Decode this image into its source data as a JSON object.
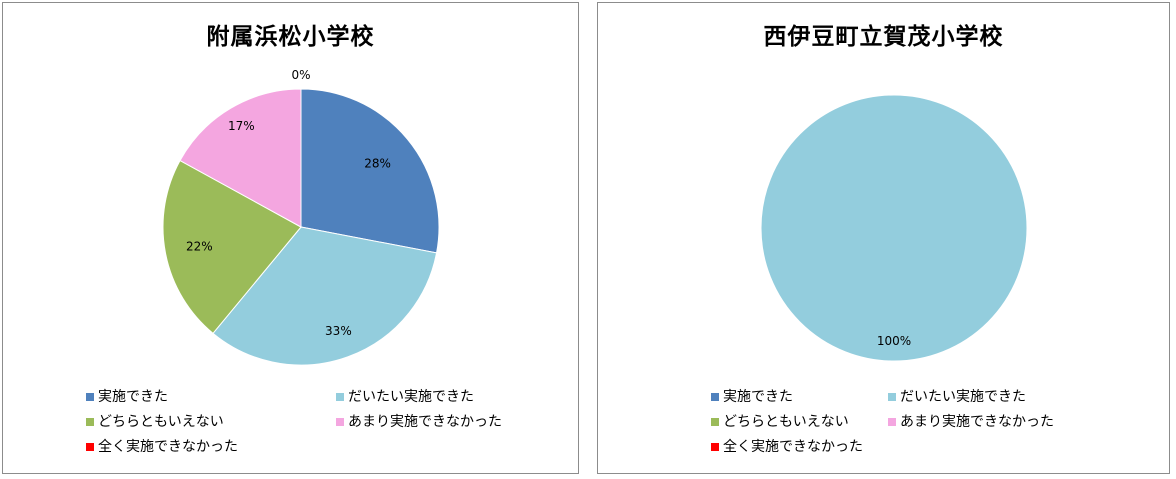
{
  "legend_labels": [
    "実施できた",
    "だいたい実施できた",
    "どちらともいえない",
    "あまり実施できなかった",
    "全く実施できなかった"
  ],
  "colors": [
    "#4f81bd",
    "#93cddd",
    "#9bbb59",
    "#f4a6e0",
    "#ff0000"
  ],
  "chart_data": [
    {
      "type": "pie",
      "title": "附属浜松小学校",
      "categories": [
        "実施できた",
        "だいたい実施できた",
        "どちらともいえない",
        "あまり実施できなかった",
        "全く実施できなかった"
      ],
      "values": [
        28,
        33,
        22,
        17,
        0
      ],
      "labels": [
        "28%",
        "33%",
        "22%",
        "17%",
        "0%"
      ]
    },
    {
      "type": "pie",
      "title": "西伊豆町立賀茂小学校",
      "categories": [
        "実施できた",
        "だいたい実施できた",
        "どちらともいえない",
        "あまり実施できなかった",
        "全く実施できなかった"
      ],
      "values": [
        0,
        100,
        0,
        0,
        0
      ],
      "labels": [
        "",
        "100%",
        "",
        "",
        ""
      ]
    }
  ]
}
